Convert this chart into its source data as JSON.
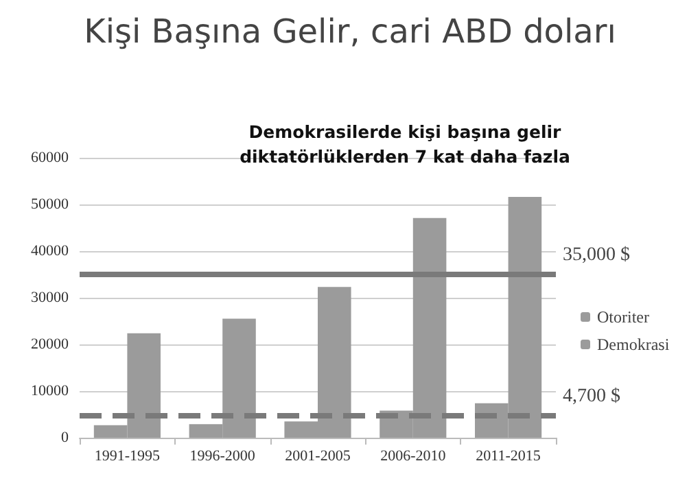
{
  "chart_data": {
    "type": "bar",
    "title": "Kişi Başına Gelir, cari ABD doları",
    "subtitle": "Demokrasilerde kişi başına gelir\ndiktatörlüklerden 7 kat daha fazla",
    "categories": [
      "1991-1995",
      "1996-2000",
      "2001-2005",
      "2006-2010",
      "2011-2015"
    ],
    "series": [
      {
        "name": "Otoriter",
        "color": "#9b9b9b",
        "values": [
          2700,
          2900,
          3500,
          5800,
          7400
        ]
      },
      {
        "name": "Demokrasi",
        "color": "#9b9b9b",
        "values": [
          22400,
          25500,
          32300,
          47100,
          51600
        ]
      }
    ],
    "ylim": [
      0,
      60000
    ],
    "yticks": [
      0,
      10000,
      20000,
      30000,
      40000,
      50000,
      60000
    ],
    "grid": "y",
    "legend": "right",
    "ref_lines": [
      {
        "axis": "y",
        "value": 35000,
        "label": "35,000 $",
        "color": "#7a7a7a",
        "line_style": "solid"
      },
      {
        "axis": "y",
        "value": 4700,
        "label": "4,700 $",
        "color": "#7a7a7a",
        "line_style": "dashed"
      }
    ]
  }
}
